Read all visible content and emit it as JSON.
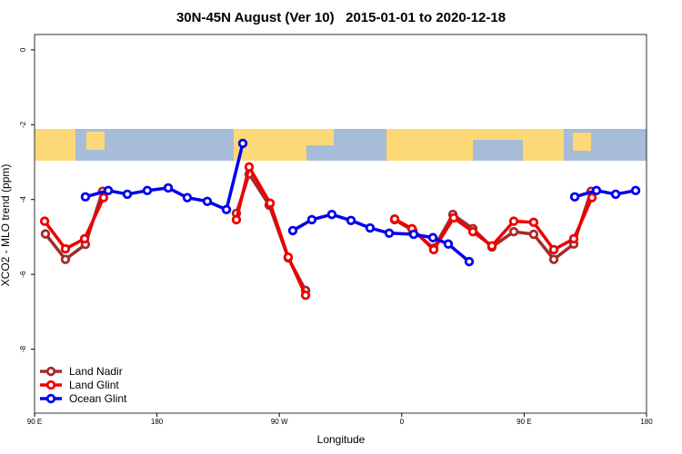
{
  "chart_data": {
    "type": "line",
    "title": "30N-45N August (Ver 10)   2015-01-01 to 2020-12-18",
    "x_label": "Longitude",
    "y_label": "XCO2 - MLO trend (ppm)",
    "xlim": [
      90,
      540
    ],
    "ylim": [
      -9.71,
      0.41
    ],
    "xticks": [
      {
        "value": 90,
        "label": "90 E"
      },
      180,
      {
        "value": 270,
        "label": "90 W"
      },
      {
        "value": 360,
        "label": "0"
      },
      {
        "value": 450,
        "label": "90 E"
      },
      {
        "value": 540,
        "label": "180"
      }
    ],
    "yticks": [
      0,
      -2,
      -4,
      -6,
      -8
    ],
    "legend": "bottomleft",
    "series": [
      {
        "name": "Land Nadir",
        "color": "#a52a2a",
        "x": [
          98,
          112.7,
          127.4,
          140,
          null,
          238.4,
          247.8,
          262.5,
          276.5,
          289.3,
          null,
          354.8,
          368.2,
          383.5,
          397.6,
          412.3,
          426.3,
          442.4,
          457,
          471.8,
          486.5,
          499.2
        ],
        "values": [
          -4.92,
          -5.6,
          -5.2,
          -3.78,
          null,
          -4.37,
          -3.32,
          -4.15,
          -5.56,
          -6.43,
          null,
          -4.54,
          -4.83,
          -5.3,
          -4.4,
          -4.78,
          -5.27,
          -4.86,
          -4.93,
          -5.6,
          -5.19,
          -3.78
        ]
      },
      {
        "name": "Land Glint",
        "color": "#ee0000",
        "x": [
          97.4,
          112.7,
          126.8,
          140.8,
          null,
          238.4,
          247.8,
          263.2,
          276.5,
          289.3,
          null,
          354.8,
          367.5,
          383.5,
          398.2,
          412.3,
          426.3,
          442.4,
          457,
          471.8,
          486.5,
          499.9
        ],
        "values": [
          -4.58,
          -5.32,
          -5.05,
          -3.95,
          null,
          -4.54,
          -3.13,
          -4.1,
          -5.54,
          -6.56,
          null,
          -4.52,
          -4.78,
          -5.34,
          -4.49,
          -4.86,
          -5.24,
          -4.58,
          -4.61,
          -5.34,
          -5.05,
          -3.95
        ]
      },
      {
        "name": "Ocean Glint",
        "color": "#0000ee",
        "x": [
          127.4,
          144.2,
          158.2,
          172.9,
          188.3,
          202.3,
          217,
          231.1,
          243.1,
          null,
          279.9,
          293.9,
          308.6,
          322.7,
          336.7,
          350.8,
          368.8,
          382.9,
          394.2,
          409.6,
          null,
          487.2,
          503.2,
          517.3,
          532
        ],
        "values": [
          -3.93,
          -3.76,
          -3.86,
          -3.76,
          -3.69,
          -3.95,
          -4.05,
          -4.27,
          -2.5,
          null,
          -4.83,
          -4.54,
          -4.4,
          -4.56,
          -4.76,
          -4.9,
          -4.93,
          -5.02,
          -5.19,
          -5.66,
          null,
          -3.93,
          -3.76,
          -3.86,
          -3.76
        ]
      }
    ]
  }
}
